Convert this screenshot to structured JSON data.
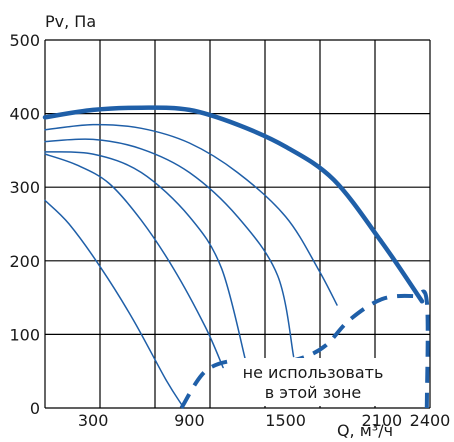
{
  "chart_data": {
    "type": "line",
    "ylabel": "Pv, Па",
    "xlabel": "Q, м³/ч",
    "xlim": [
      0,
      2400
    ],
    "ylim": [
      0,
      500
    ],
    "x_ticks": [
      "0",
      "300",
      "900",
      "1500",
      "2100",
      "2400"
    ],
    "y_ticks": [
      "0",
      "100",
      "200",
      "300",
      "400",
      "500"
    ],
    "grid": true,
    "annotation": [
      "не использовать",
      "в этой зоне"
    ],
    "colors": {
      "curve": "#1f5fa8",
      "grid": "#000000"
    },
    "series": [
      {
        "style": "bold",
        "x": [
          0,
          300,
          600,
          900,
          1200,
          1500,
          1800,
          2100,
          2350
        ],
        "y": [
          395,
          405,
          408,
          405,
          385,
          355,
          310,
          225,
          145
        ]
      },
      {
        "style": "thin",
        "x": [
          0,
          300,
          600,
          900,
          1200,
          1500,
          1700,
          1820
        ],
        "y": [
          378,
          385,
          380,
          360,
          320,
          260,
          190,
          140
        ]
      },
      {
        "style": "thin",
        "x": [
          0,
          300,
          600,
          900,
          1200,
          1450,
          1550
        ],
        "y": [
          362,
          365,
          352,
          320,
          260,
          180,
          70
        ]
      },
      {
        "style": "thin",
        "x": [
          0,
          300,
          600,
          900,
          1100,
          1250
        ],
        "y": [
          348,
          345,
          320,
          260,
          190,
          65
        ]
      },
      {
        "style": "thin",
        "x": [
          0,
          200,
          400,
          600,
          800,
          1000,
          1110
        ],
        "y": [
          345,
          330,
          305,
          255,
          190,
          110,
          55
        ]
      },
      {
        "style": "thin",
        "x": [
          0,
          150,
          350,
          550,
          750,
          850
        ],
        "y": [
          282,
          250,
          190,
          120,
          40,
          5
        ]
      },
      {
        "style": "dashed",
        "x": [
          850,
          1000,
          1200,
          1400,
          1600,
          1750,
          1900,
          2100,
          2300,
          2380,
          2380
        ],
        "y": [
          0,
          50,
          65,
          60,
          68,
          85,
          120,
          148,
          152,
          145,
          0
        ]
      }
    ]
  }
}
